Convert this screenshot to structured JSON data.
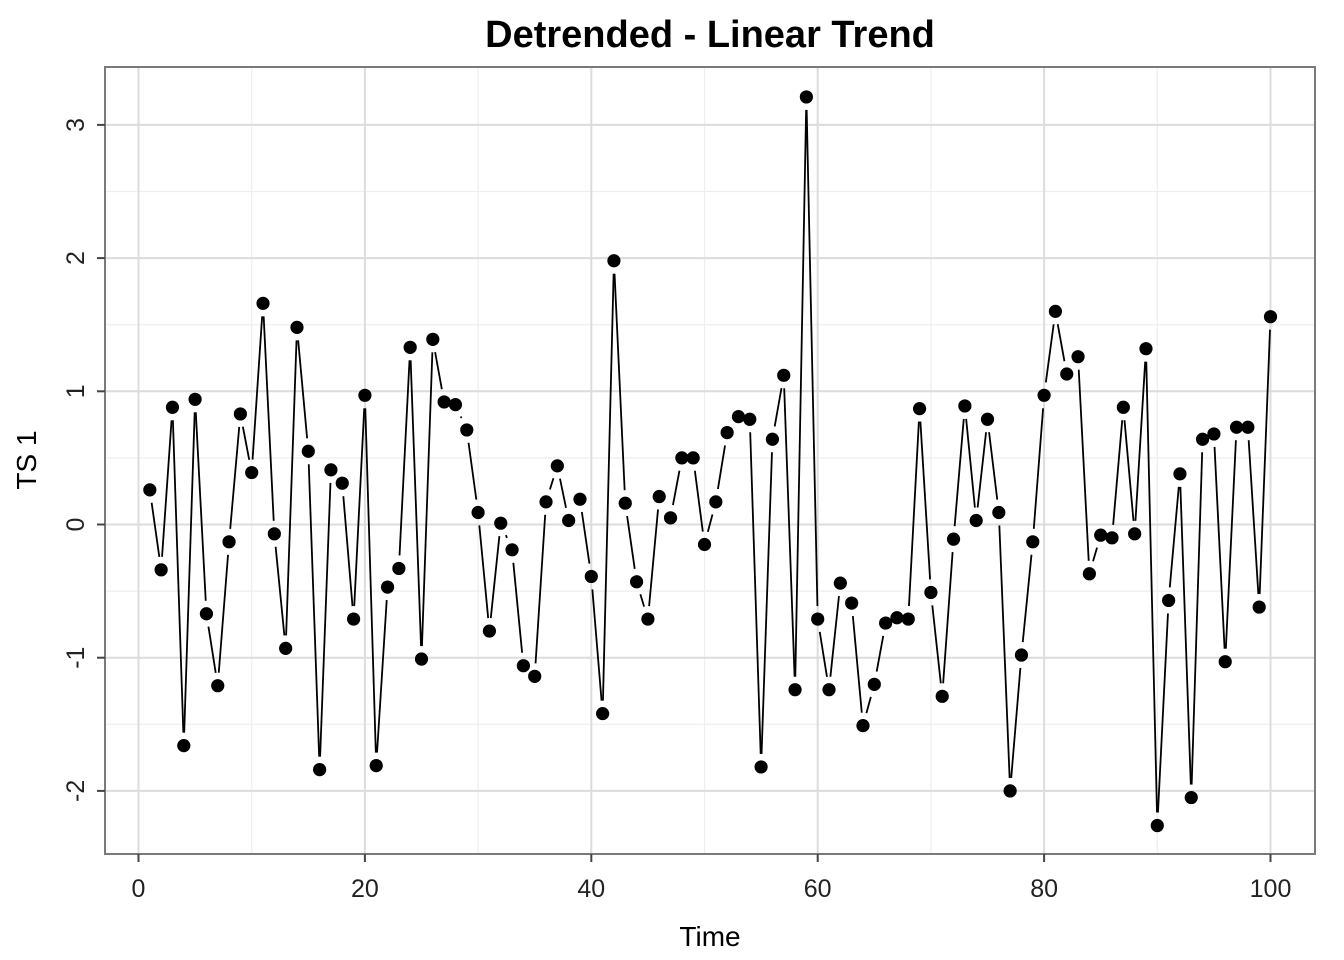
{
  "chart_data": {
    "type": "line",
    "title": "Detrended - Linear Trend",
    "xlabel": "Time",
    "ylabel": "TS 1",
    "xlim": [
      0,
      100
    ],
    "ylim": [
      -2.5,
      3.4
    ],
    "x_ticks": [
      0,
      20,
      40,
      60,
      80,
      100
    ],
    "x_tick_labels": [
      "0",
      "20",
      "40",
      "60",
      "80",
      "100"
    ],
    "y_ticks": [
      -2,
      -1,
      0,
      1,
      2,
      3
    ],
    "y_tick_labels": [
      "-2",
      "-1",
      "0",
      "1",
      "2",
      "3"
    ],
    "grid": true,
    "markers": true,
    "series": [
      {
        "x": [
          1,
          2,
          3,
          4,
          5,
          6,
          7,
          8,
          9,
          10,
          11,
          12,
          13,
          14,
          15,
          16,
          17,
          18,
          19,
          20,
          21,
          22,
          23,
          24,
          25,
          26,
          27,
          28,
          29,
          30,
          31,
          32,
          33,
          34,
          35,
          36,
          37,
          38,
          39,
          40,
          41,
          42,
          43,
          44,
          45,
          46,
          47,
          48,
          49,
          50,
          51,
          52,
          53,
          54,
          55,
          56,
          57,
          58,
          59,
          60,
          61,
          62,
          63,
          64,
          65,
          66,
          67,
          68,
          69,
          70,
          71,
          72,
          73,
          74,
          75,
          76,
          77,
          78,
          79,
          80,
          81,
          82,
          83,
          84,
          85,
          86,
          87,
          88,
          89,
          90,
          91,
          92,
          93,
          94,
          95,
          96,
          97,
          98,
          99,
          100
        ],
        "values": [
          0.26,
          -0.34,
          0.88,
          -1.66,
          0.94,
          -0.67,
          -1.21,
          -0.13,
          0.83,
          0.39,
          1.66,
          -0.07,
          -0.93,
          1.48,
          0.55,
          -1.84,
          0.41,
          0.31,
          -0.71,
          0.97,
          -1.81,
          -0.47,
          -0.33,
          1.33,
          -1.01,
          1.39,
          0.92,
          0.9,
          0.71,
          0.09,
          -0.8,
          0.01,
          -0.19,
          -1.06,
          -1.14,
          0.17,
          0.44,
          0.03,
          0.19,
          -0.39,
          -1.42,
          1.98,
          0.16,
          -0.43,
          -0.71,
          0.21,
          0.05,
          0.5,
          0.5,
          -0.15,
          0.17,
          0.69,
          0.81,
          0.79,
          -1.82,
          0.64,
          1.12,
          -1.24,
          3.21,
          -0.71,
          -1.24,
          -0.44,
          -0.59,
          -1.51,
          -1.2,
          -0.74,
          -0.7,
          -0.71,
          0.87,
          -0.51,
          -1.29,
          -0.11,
          0.89,
          0.03,
          0.79,
          0.09,
          -2.0,
          -0.98,
          -0.13,
          0.97,
          1.6,
          1.13,
          1.26,
          -0.37,
          -0.08,
          -0.1,
          0.88,
          -0.07,
          1.32,
          -2.26,
          -0.57,
          0.38,
          -2.05,
          0.64,
          0.68,
          -1.03,
          0.73,
          0.73,
          -0.62,
          1.56
        ]
      }
    ]
  }
}
